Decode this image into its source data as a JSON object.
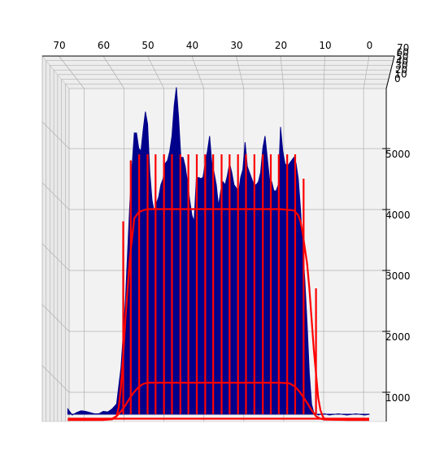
{
  "chart_data": {
    "type": "area",
    "title": "",
    "xlabel": "",
    "ylabel": "",
    "zlabel": "",
    "grid": true,
    "legend": "none",
    "x_ticks": [
      70,
      60,
      50,
      40,
      30,
      20,
      10,
      0
    ],
    "y_ticks": [
      70,
      60,
      50,
      40,
      30,
      20,
      10,
      0
    ],
    "z_ticks": [
      1000,
      2000,
      3000,
      4000,
      5000
    ],
    "xlim": [
      70,
      0
    ],
    "zlim": [
      600,
      6000
    ],
    "colors": {
      "area": "#00008b",
      "lines": "#ff0000",
      "pane": "#f2f2f2",
      "grid": "#b0b0b0"
    },
    "series": [
      {
        "kind": "area",
        "x": [
          68,
          67,
          66,
          65,
          64,
          63,
          62,
          61,
          60,
          59,
          58,
          57,
          56,
          55,
          54.5,
          54,
          53.5,
          53,
          52.5,
          52,
          51.5,
          51,
          50.5,
          50,
          49.5,
          49,
          48.5,
          48,
          47.5,
          47,
          46.5,
          46,
          45.5,
          45,
          44.5,
          44,
          43.5,
          43,
          42.5,
          42,
          41.5,
          41,
          40.5,
          40,
          39.5,
          39,
          38.5,
          38,
          37.5,
          37,
          36.5,
          36,
          35.5,
          35,
          34.5,
          34,
          33.5,
          33,
          32.5,
          32,
          31.5,
          31,
          30.5,
          30,
          29.5,
          29,
          28.5,
          28,
          27.5,
          27,
          26.5,
          26,
          25.5,
          25,
          24.5,
          24,
          23.5,
          23,
          22.5,
          22,
          21.5,
          21,
          20.5,
          20,
          19.5,
          19,
          18.5,
          18,
          17.5,
          17,
          16.5,
          16,
          15.5,
          15,
          14.5,
          14,
          13.5,
          13,
          12.5,
          12,
          11.5,
          11,
          10,
          9,
          8,
          7,
          6,
          5,
          4,
          3,
          2,
          1,
          0
        ],
        "z": [
          820,
          720,
          760,
          790,
          780,
          760,
          740,
          740,
          780,
          770,
          820,
          900,
          1500,
          2600,
          3400,
          4200,
          4800,
          5350,
          5350,
          5100,
          5050,
          5400,
          5700,
          5500,
          4700,
          4250,
          4050,
          4200,
          4300,
          4500,
          4600,
          4850,
          4900,
          5050,
          5300,
          5800,
          6100,
          5600,
          4950,
          4950,
          4800,
          4550,
          4250,
          4000,
          3900,
          4600,
          4620,
          4600,
          4620,
          4850,
          5050,
          5300,
          4850,
          4700,
          4500,
          4150,
          4400,
          4550,
          4500,
          4650,
          4850,
          4700,
          4500,
          4450,
          4350,
          4620,
          4750,
          5200,
          4800,
          4700,
          4600,
          4500,
          4500,
          4550,
          4700,
          5100,
          5300,
          4950,
          4600,
          4550,
          4400,
          4400,
          4500,
          5450,
          5050,
          4850,
          4800,
          4850,
          4900,
          4950,
          4850,
          4600,
          4100,
          3500,
          2900,
          2200,
          1400,
          900,
          760,
          740,
          720,
          730,
          740,
          720,
          730,
          740,
          730,
          720,
          730,
          740,
          730,
          720,
          730,
          720
        ]
      },
      {
        "kind": "line",
        "name": "",
        "x": [
          68,
          60,
          58,
          57,
          56.5,
          56,
          55.5,
          55,
          54.5,
          54,
          53,
          52,
          51,
          50,
          20,
          17,
          16,
          15.5,
          15,
          14.5,
          14,
          13.5,
          13,
          12.5,
          12,
          11.5,
          11,
          10.5,
          10,
          5,
          0
        ],
        "z": [
          640,
          640,
          650,
          700,
          850,
          1200,
          1700,
          2300,
          2800,
          3300,
          3950,
          4050,
          4080,
          4100,
          4100,
          4080,
          4000,
          3900,
          3700,
          3450,
          3200,
          2800,
          2300,
          1800,
          1400,
          1000,
          800,
          700,
          650,
          640,
          640
        ]
      },
      {
        "kind": "line",
        "name": "",
        "x": [
          68,
          60,
          58,
          57,
          56,
          55,
          54,
          53,
          52,
          51,
          50,
          20,
          18,
          17,
          16,
          15,
          14,
          13,
          12,
          11,
          10,
          5,
          0
        ],
        "z": [
          640,
          640,
          660,
          700,
          780,
          880,
          1000,
          1100,
          1180,
          1230,
          1250,
          1250,
          1240,
          1200,
          1130,
          1030,
          920,
          800,
          700,
          660,
          645,
          640,
          640
        ]
      },
      {
        "kind": "line",
        "name": "",
        "x": [
          68,
          0
        ],
        "z": [
          660,
          660
        ]
      },
      {
        "kind": "spikes",
        "x": [
          55.5,
          53.8,
          51.9,
          50.0,
          48.2,
          46.3,
          44.5,
          42.6,
          40.8,
          38.9,
          37.0,
          35.2,
          33.3,
          31.5,
          29.6,
          27.8,
          25.9,
          24.0,
          22.2,
          20.4,
          18.5,
          16.7,
          14.8,
          12.0
        ],
        "z": [
          3900,
          4900,
          5000,
          5000,
          5000,
          5000,
          5000,
          5000,
          5000,
          5000,
          5000,
          5000,
          5000,
          5000,
          5000,
          5000,
          5000,
          5000,
          5000,
          5000,
          5000,
          5000,
          4600,
          2800
        ]
      }
    ]
  }
}
